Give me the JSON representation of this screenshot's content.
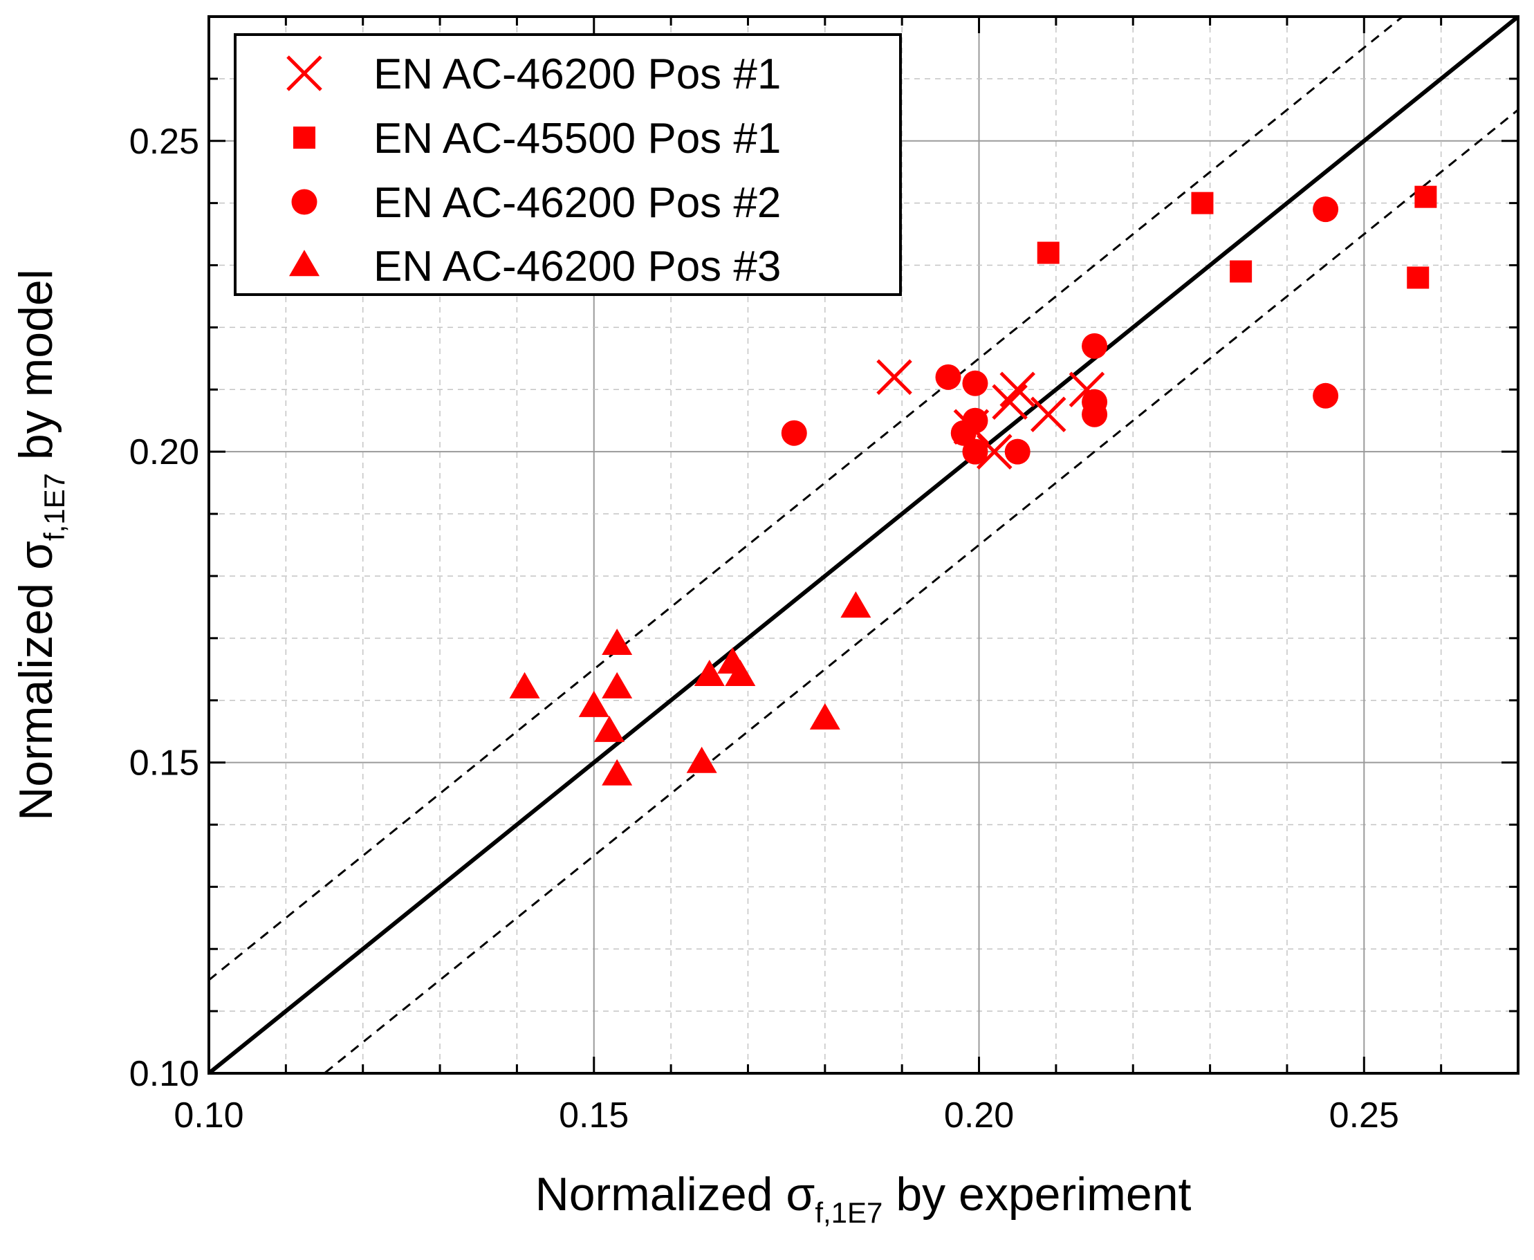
{
  "chart_data": {
    "type": "scatter",
    "xlabel": {
      "prefix": "Normalized ",
      "symbol": "σ",
      "subscript": "f,1E7",
      "suffix": " by experiment"
    },
    "ylabel": {
      "prefix": "Normalized ",
      "symbol": "σ",
      "subscript": "f,1E7",
      "suffix": " by model"
    },
    "xlim": [
      0.1,
      0.27
    ],
    "ylim": [
      0.1,
      0.27
    ],
    "xticks": [
      0.1,
      0.15,
      0.2,
      0.25
    ],
    "yticks": [
      0.1,
      0.15,
      0.2,
      0.25
    ],
    "xtick_labels": [
      "0.10",
      "0.15",
      "0.20",
      "0.25"
    ],
    "ytick_labels": [
      "0.10",
      "0.15",
      "0.20",
      "0.25"
    ],
    "minor_step": 0.01,
    "grid": true,
    "legend_position": "top-left",
    "reference_lines": [
      {
        "name": "identity",
        "slope": 1.0,
        "intercept": 0.0,
        "style": "solid"
      },
      {
        "name": "upper-bound",
        "slope": 1.0,
        "intercept": 0.015,
        "style": "dashed"
      },
      {
        "name": "lower-bound",
        "slope": 1.0,
        "intercept": -0.015,
        "style": "dashed"
      }
    ],
    "series": [
      {
        "name": "EN AC-46200 Pos #1",
        "marker": "x",
        "color": "#ff0000",
        "points": [
          [
            0.189,
            0.212
          ],
          [
            0.199,
            0.204
          ],
          [
            0.202,
            0.2
          ],
          [
            0.204,
            0.208
          ],
          [
            0.205,
            0.21
          ],
          [
            0.209,
            0.206
          ],
          [
            0.214,
            0.21
          ]
        ]
      },
      {
        "name": "EN AC-45500 Pos #1",
        "marker": "square",
        "color": "#ff0000",
        "points": [
          [
            0.209,
            0.232
          ],
          [
            0.229,
            0.24
          ],
          [
            0.234,
            0.229
          ],
          [
            0.257,
            0.228
          ],
          [
            0.258,
            0.241
          ]
        ]
      },
      {
        "name": "EN AC-46200 Pos #2",
        "marker": "circle",
        "color": "#ff0000",
        "points": [
          [
            0.176,
            0.203
          ],
          [
            0.196,
            0.212
          ],
          [
            0.198,
            0.203
          ],
          [
            0.1995,
            0.2
          ],
          [
            0.1995,
            0.205
          ],
          [
            0.1995,
            0.211
          ],
          [
            0.205,
            0.2
          ],
          [
            0.215,
            0.206
          ],
          [
            0.215,
            0.208
          ],
          [
            0.215,
            0.217
          ],
          [
            0.245,
            0.209
          ],
          [
            0.245,
            0.239
          ]
        ]
      },
      {
        "name": "EN AC-46200 Pos #3",
        "marker": "triangle",
        "color": "#ff0000",
        "points": [
          [
            0.141,
            0.162
          ],
          [
            0.15,
            0.159
          ],
          [
            0.152,
            0.155
          ],
          [
            0.153,
            0.148
          ],
          [
            0.153,
            0.162
          ],
          [
            0.153,
            0.169
          ],
          [
            0.164,
            0.15
          ],
          [
            0.165,
            0.164
          ],
          [
            0.168,
            0.166
          ],
          [
            0.169,
            0.164
          ],
          [
            0.18,
            0.157
          ],
          [
            0.184,
            0.175
          ]
        ]
      }
    ]
  }
}
